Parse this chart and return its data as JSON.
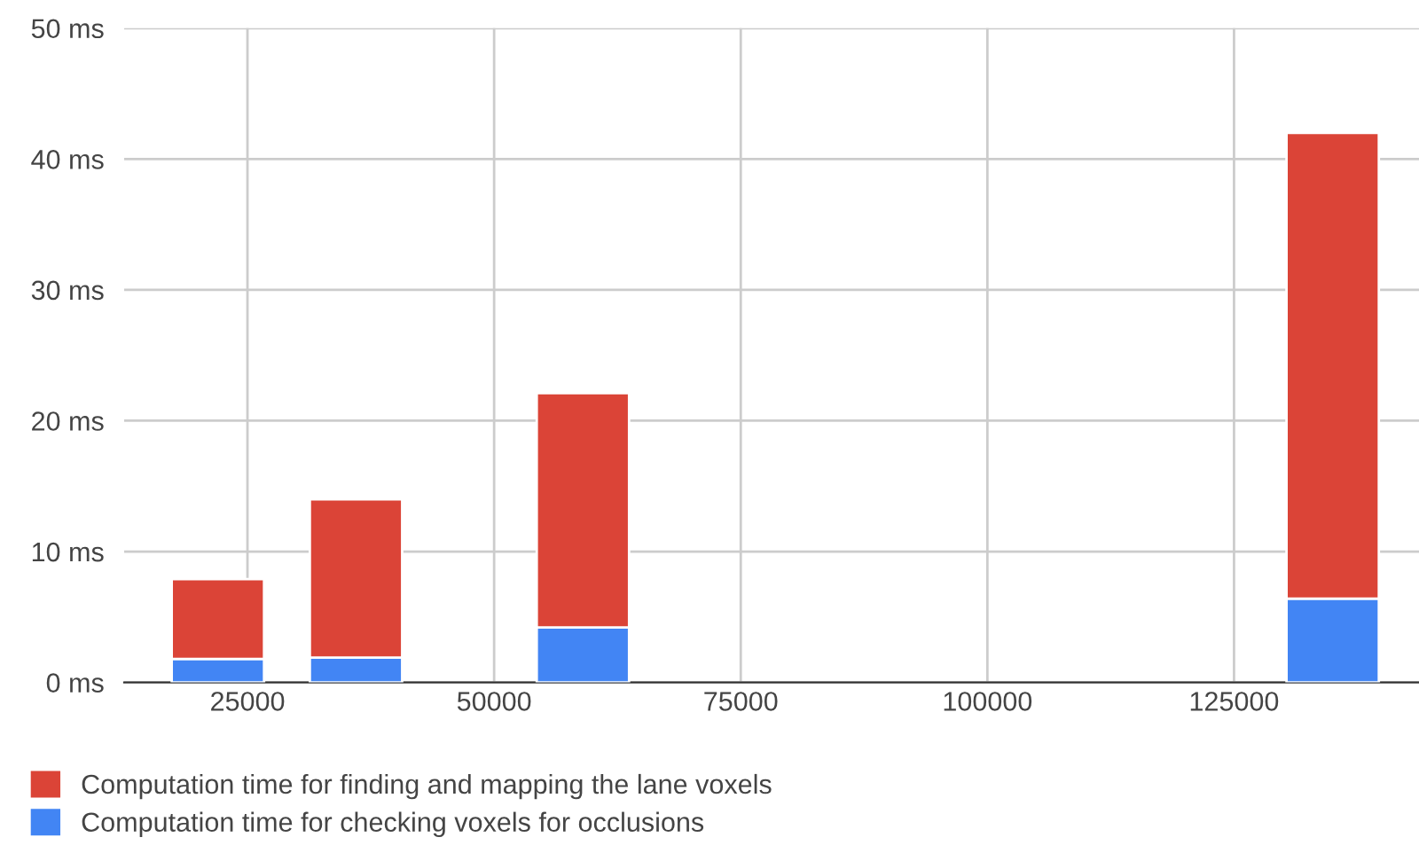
{
  "chart_data": {
    "type": "bar",
    "stacked": true,
    "x": [
      22000,
      36000,
      59000,
      135000
    ],
    "series": [
      {
        "name": "Computation time for checking voxels for occlusions",
        "color": "#4285f4",
        "values": [
          1.8,
          1.9,
          4.2,
          6.4
        ]
      },
      {
        "name": "Computation time for finding and mapping the lane voxels",
        "color": "#db4437",
        "values": [
          6.1,
          12.1,
          17.9,
          35.6
        ]
      }
    ],
    "xlim": [
      12500,
      143750
    ],
    "xticks": [
      25000,
      50000,
      75000,
      100000,
      125000
    ],
    "ylim": [
      0,
      50
    ],
    "yticks": [
      {
        "value": 0,
        "label": "0 ms"
      },
      {
        "value": 10,
        "label": "10 ms"
      },
      {
        "value": 20,
        "label": "20 ms"
      },
      {
        "value": 30,
        "label": "30 ms"
      },
      {
        "value": 40,
        "label": "40 ms"
      },
      {
        "value": 50,
        "label": "50 ms"
      }
    ],
    "grid": true,
    "legend": "bottom left"
  }
}
